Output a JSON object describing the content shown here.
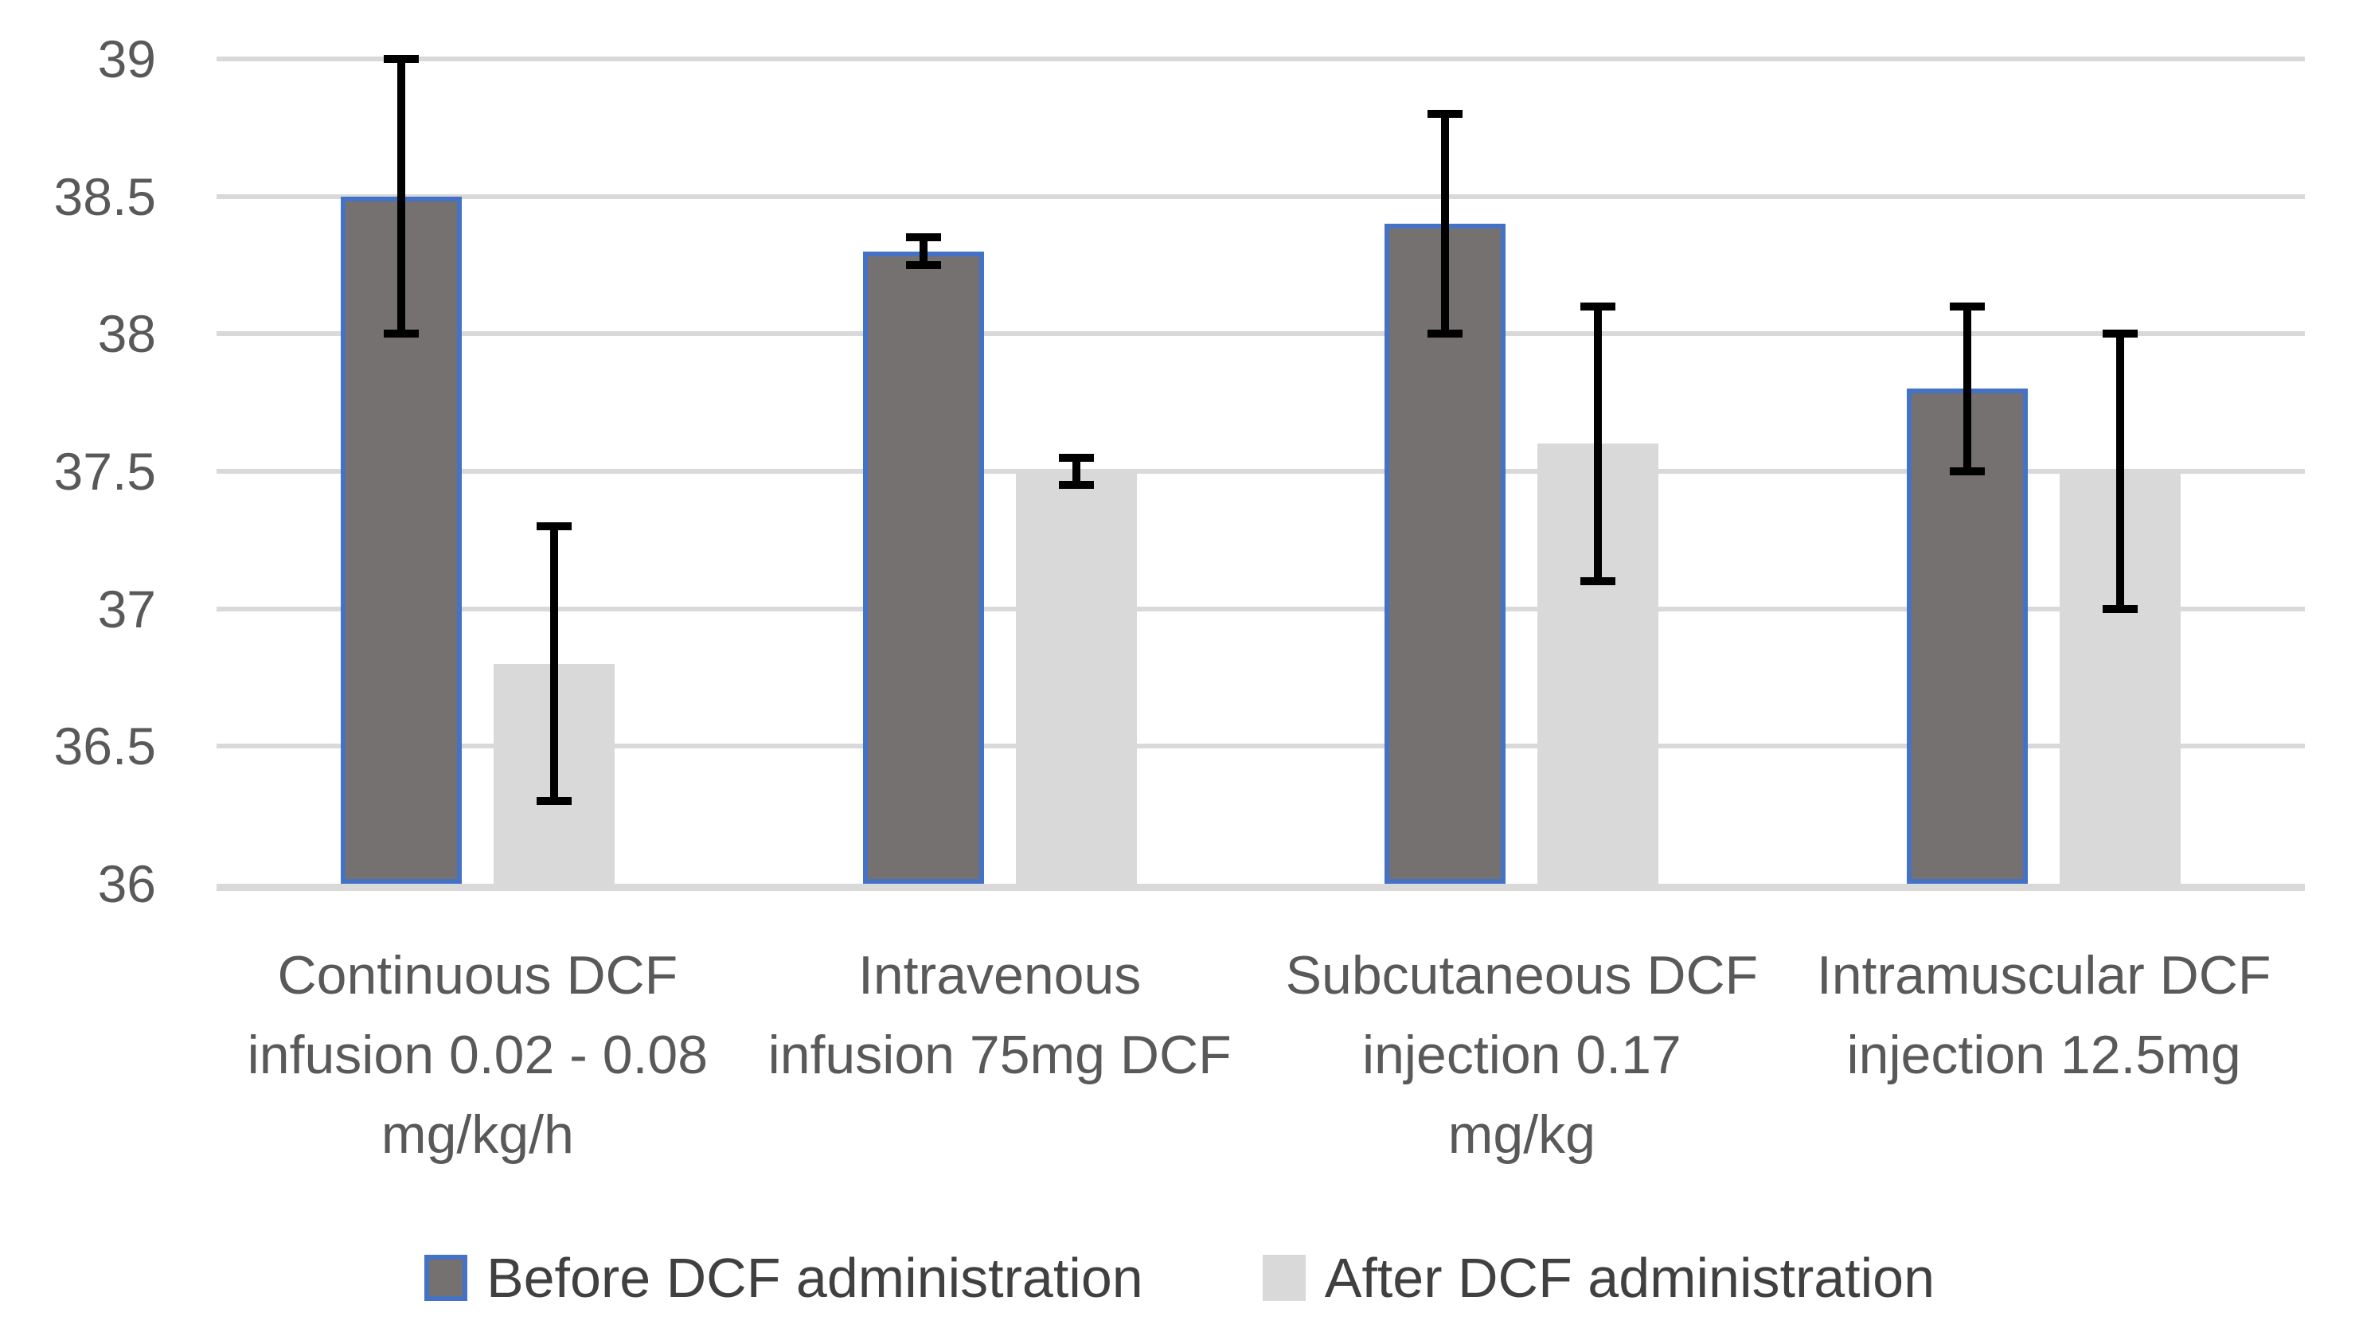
{
  "chart_data": {
    "type": "bar",
    "title": "",
    "xlabel": "",
    "ylabel": "",
    "grid": true,
    "legend_position": "bottom",
    "categories": [
      "Continuous DCF infusion 0.02 - 0.08 mg/kg/h",
      "Intravenous infusion 75mg DCF",
      "Subcutaneous DCF injection 0.17 mg/kg",
      "Intramuscular DCF injection 12.5mg"
    ],
    "category_lines": [
      [
        "Continuous DCF",
        "infusion 0.02 - 0.08",
        "mg/kg/h"
      ],
      [
        "Intravenous",
        "infusion 75mg DCF"
      ],
      [
        "Subcutaneous DCF",
        "injection 0.17",
        "mg/kg"
      ],
      [
        "Intramuscular DCF",
        "injection 12.5mg"
      ]
    ],
    "series": [
      {
        "name": "Before DCF administration",
        "values": [
          38.5,
          38.3,
          38.4,
          37.8
        ],
        "error_low": [
          38.0,
          38.25,
          38.0,
          37.5
        ],
        "error_high": [
          39.0,
          38.35,
          38.8,
          38.1
        ],
        "fill": "#767171",
        "border": "#4472C4"
      },
      {
        "name": "After DCF administration",
        "values": [
          36.8,
          37.5,
          37.6,
          37.5
        ],
        "error_low": [
          36.3,
          37.45,
          37.1,
          37.0
        ],
        "error_high": [
          37.3,
          37.55,
          38.1,
          38.0
        ],
        "fill": "#D9D9D9",
        "border": null
      }
    ],
    "y_axis": {
      "min": 36,
      "max": 39,
      "step": 0.5,
      "ticks": [
        "39",
        "38.5",
        "38",
        "37.5",
        "37",
        "36.5",
        "36"
      ]
    },
    "colors": {
      "gridline": "#D9D9D9",
      "axis_line": "#D9D9D9",
      "error_bar": "#000000",
      "tick_text": "#595959",
      "category_text": "#595959",
      "legend_text": "#404040"
    }
  }
}
